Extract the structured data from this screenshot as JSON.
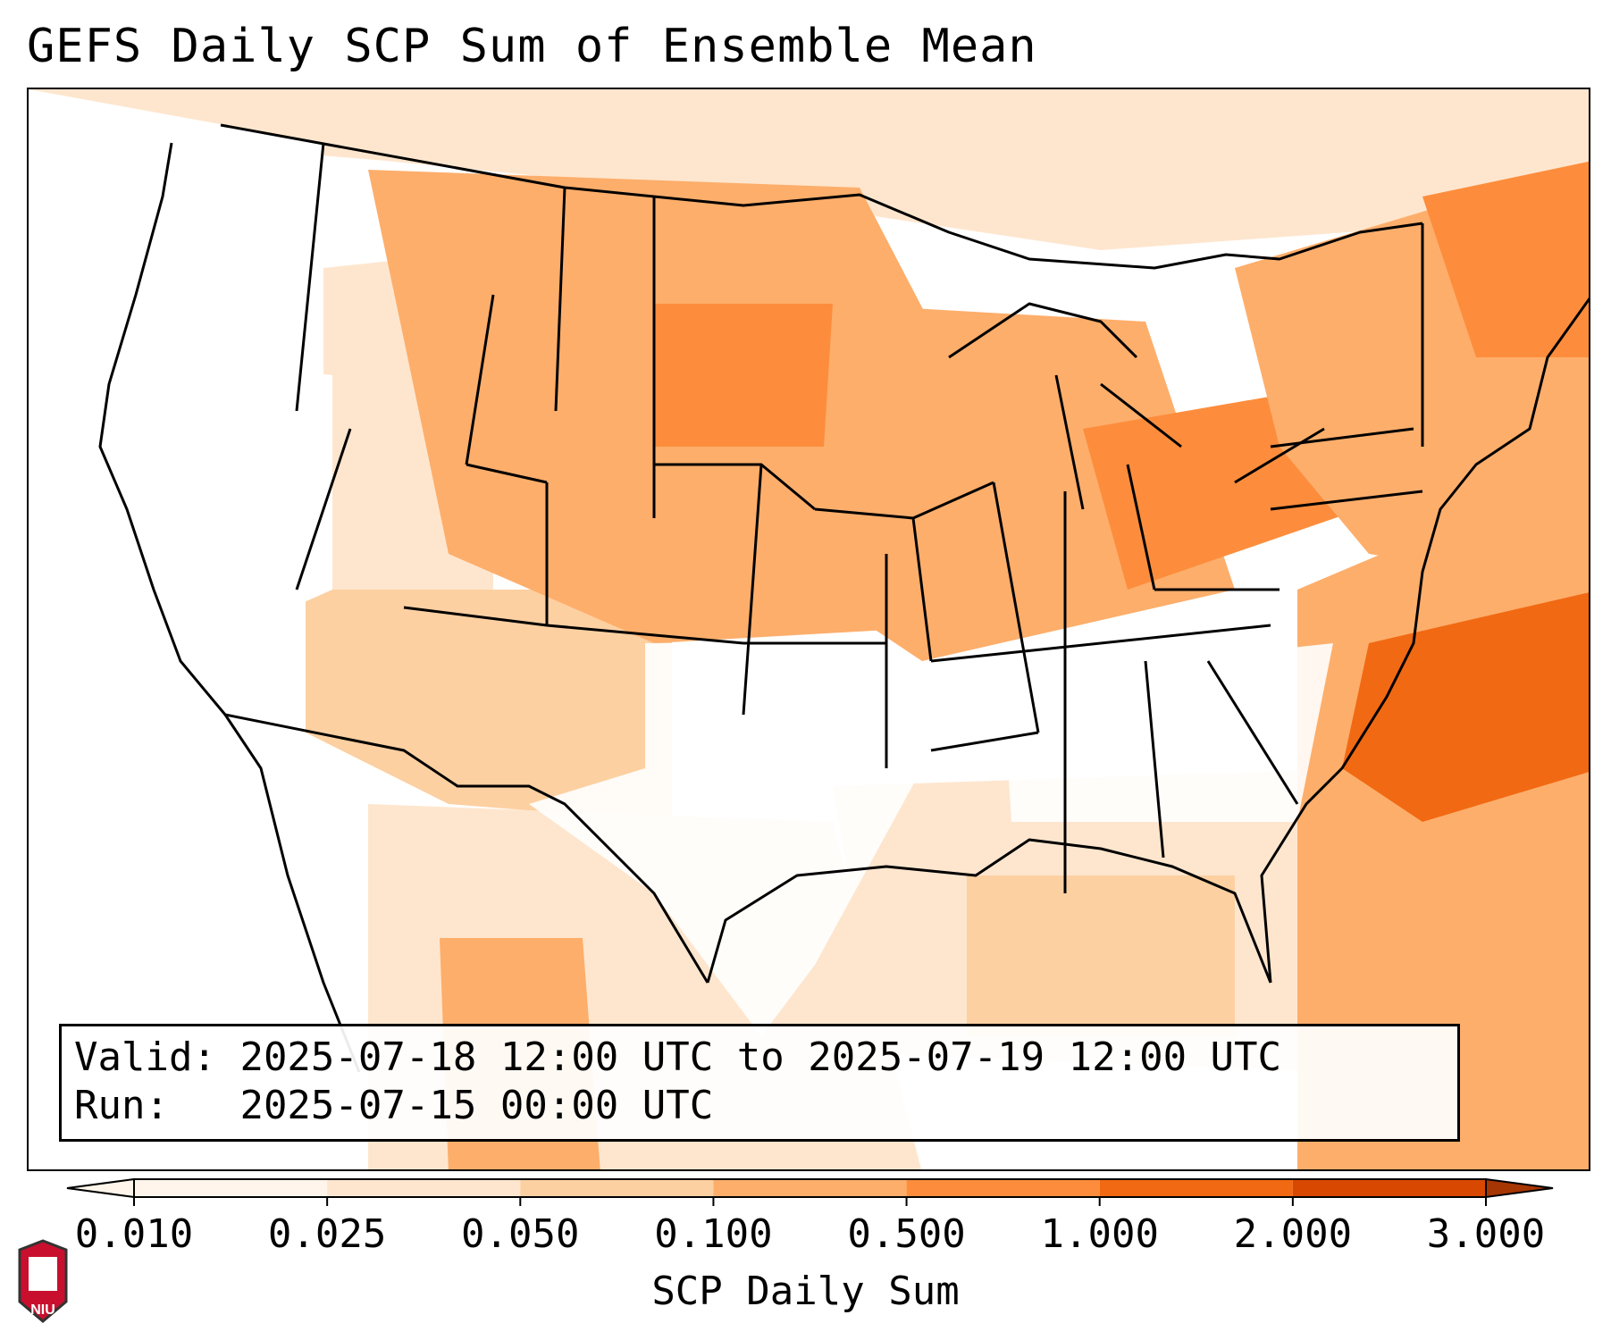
{
  "title": "GEFS Daily SCP Sum of Ensemble Mean",
  "info": {
    "valid_label": "Valid:",
    "valid_value": "2025-07-18 12:00 UTC to 2025-07-19 12:00 UTC",
    "run_label": "Run:",
    "run_value": "2025-07-15 00:00 UTC"
  },
  "colorbar": {
    "title": "SCP Daily Sum",
    "levels": [
      "0.010",
      "0.025",
      "0.050",
      "0.100",
      "0.500",
      "1.000",
      "2.000",
      "3.000"
    ],
    "colors": [
      "#fff5eb",
      "#fee6ce",
      "#fdd0a2",
      "#fdae6b",
      "#fd8d3c",
      "#f16913",
      "#d94801",
      "#a63603"
    ],
    "extend": "both"
  },
  "logo": {
    "text": "NIU",
    "colors": {
      "shield": "#c8102e",
      "building": "#ffffff",
      "border": "#333333"
    }
  },
  "map": {
    "region": "Contiguous United States",
    "field_regions": [
      {
        "name": "northern-plains",
        "level": "0.100"
      },
      {
        "name": "south-dakota-core",
        "level": "0.500"
      },
      {
        "name": "pennsylvania-ohio",
        "level": "0.500"
      },
      {
        "name": "atlantic-offshore",
        "level": "1.000"
      },
      {
        "name": "atlantic-outer",
        "level": "0.500"
      },
      {
        "name": "midwest",
        "level": "0.100"
      },
      {
        "name": "great-basin",
        "level": "0.025"
      },
      {
        "name": "southwest",
        "level": "0.050"
      },
      {
        "name": "gulf-coast",
        "level": "0.050"
      },
      {
        "name": "northeast",
        "level": "0.100"
      }
    ]
  }
}
